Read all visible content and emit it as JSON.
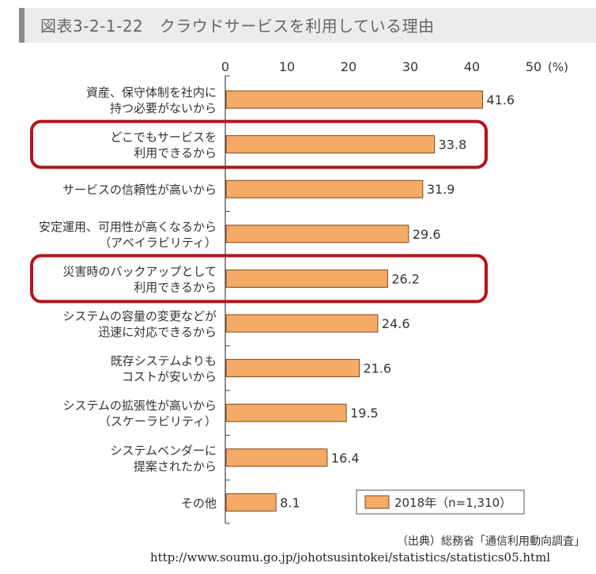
{
  "figure": {
    "title": "図表3-2-1-22　クラウドサービスを利用している理由",
    "source_label": "（出典）総務省「通信利用動向調査」",
    "source_url": "http://www.soumu.go.jp/johotsusintokei/statistics/statistics05.html"
  },
  "chart_data": {
    "type": "bar",
    "orientation": "horizontal",
    "categories": [
      [
        "資産、保守体制を社内に",
        "持つ必要がないから"
      ],
      [
        "どこでもサービスを",
        "利用できるから"
      ],
      [
        "サービスの信頼性が高いから"
      ],
      [
        "安定運用、可用性が高くなるから",
        "（アベイラビリティ）"
      ],
      [
        "災害時のバックアップとして",
        "利用できるから"
      ],
      [
        "システムの容量の変更などが",
        "迅速に対応できるから"
      ],
      [
        "既存システムよりも",
        "コストが安いから"
      ],
      [
        "システムの拡張性が高いから",
        "（スケーラビリティ）"
      ],
      [
        "システムベンダーに",
        "提案されたから"
      ],
      [
        "その他"
      ]
    ],
    "series": [
      {
        "name": "2018年（n=1,310）",
        "values": [
          41.6,
          33.8,
          31.9,
          29.6,
          26.2,
          24.6,
          21.6,
          19.5,
          16.4,
          8.1
        ]
      }
    ],
    "value_labels": [
      "41.6",
      "33.8",
      "31.9",
      "29.6",
      "26.2",
      "24.6",
      "21.6",
      "19.5",
      "16.4",
      "8.1"
    ],
    "xlim": [
      0,
      50
    ],
    "x_ticks": [
      0,
      10,
      20,
      30,
      40,
      50
    ],
    "x_unit": "(%)",
    "highlighted_categories": [
      1,
      4
    ],
    "legend_position": "bottom-right",
    "colors": {
      "bar": "#f5aa66",
      "bar_stroke": "#7a4a1e",
      "highlight": "#b5121b",
      "axis": "#444444"
    }
  }
}
